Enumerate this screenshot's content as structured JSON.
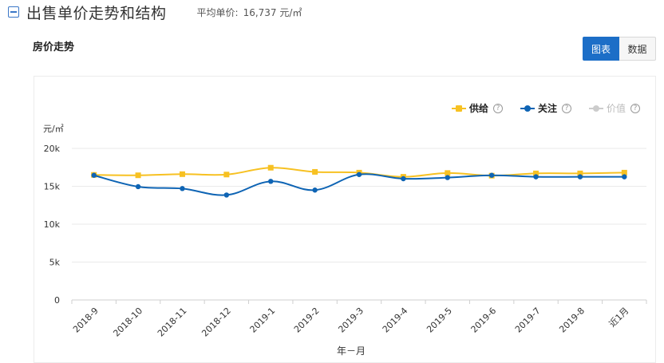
{
  "header": {
    "title": "出售单价走势和结构",
    "avg_label": "平均单价:",
    "avg_value": "16,737 元/㎡"
  },
  "panel": {
    "title": "房价走势",
    "toggle": {
      "chart_label": "图表",
      "data_label": "数据"
    }
  },
  "colors": {
    "supply": "#f7c122",
    "attention": "#0e64b4",
    "value": "#cccccc",
    "accent": "#1c6ec7"
  },
  "legend": [
    {
      "label": "供给",
      "color": "#f7c122",
      "marker": "square",
      "active": true
    },
    {
      "label": "关注",
      "color": "#0e64b4",
      "marker": "circle",
      "active": true
    },
    {
      "label": "价值",
      "color": "#cccccc",
      "marker": "circle",
      "active": false
    }
  ],
  "chart_data": {
    "type": "line",
    "ylabel": "元/㎡",
    "xlabel": "年－月",
    "ylim": [
      0,
      20000
    ],
    "yticks": [
      {
        "value": 0,
        "label": "0"
      },
      {
        "value": 5000,
        "label": "5k"
      },
      {
        "value": 10000,
        "label": "10k"
      },
      {
        "value": 15000,
        "label": "15k"
      },
      {
        "value": 20000,
        "label": "20k"
      }
    ],
    "categories": [
      "2018-9",
      "2018-10",
      "2018-11",
      "2018-12",
      "2019-1",
      "2019-2",
      "2019-3",
      "2019-4",
      "2019-5",
      "2019-6",
      "2019-7",
      "2019-8",
      "近1月"
    ],
    "series": [
      {
        "name": "供给",
        "values": [
          16500,
          16450,
          16600,
          16550,
          17450,
          16900,
          16800,
          16250,
          16750,
          16400,
          16700,
          16700,
          16800
        ]
      },
      {
        "name": "关注",
        "values": [
          16450,
          14950,
          14700,
          13850,
          15650,
          14500,
          16550,
          16000,
          16150,
          16450,
          16250,
          16250,
          16250
        ]
      }
    ],
    "grid": true,
    "legend_position": "top-right"
  }
}
